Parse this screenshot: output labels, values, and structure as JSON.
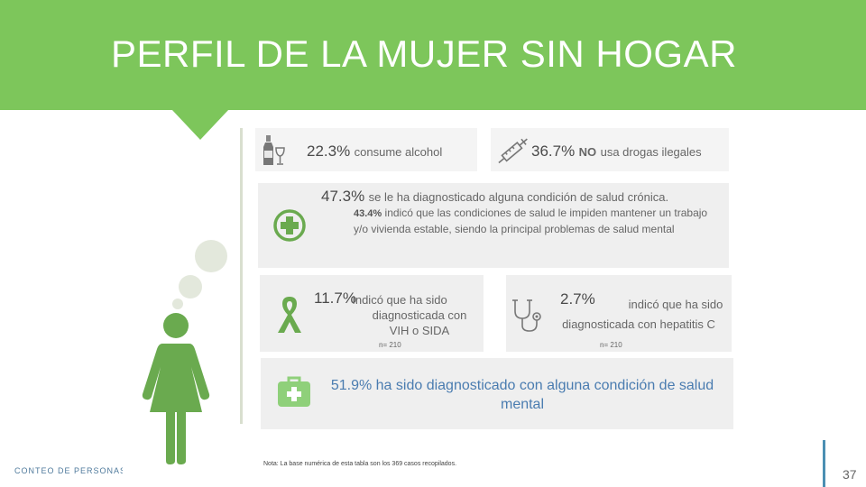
{
  "title": "PERFIL DE LA MUJER SIN HOGAR",
  "alcohol": {
    "pct": "22.3%",
    "text": "consume alcohol",
    "icon": "bottle-glass-icon"
  },
  "drugs": {
    "pct": "36.7%",
    "no": "NO",
    "text": "usa drogas ilegales",
    "icon": "syringe-icon"
  },
  "chronic": {
    "pct": "47.3%",
    "text": "se le ha diagnosticado alguna condición de salud crónica.",
    "sub_pct": "43.4%",
    "sub_text": "indicó que las condiciones de salud le impiden mantener un trabajo y/o vivienda estable, siendo la principal problemas de salud mental",
    "icon": "medical-cross-icon"
  },
  "hiv": {
    "pct": "11.7%",
    "text": "Indicó que ha sido diagnosticada con VIH o SIDA",
    "n": "n= 210",
    "icon": "awareness-ribbon-icon"
  },
  "hepatitis": {
    "pct": "2.7%",
    "text": "indicó que ha sido diagnosticada con hepatitis C",
    "n": "n= 210",
    "icon": "stethoscope-icon"
  },
  "mental": {
    "pct": "51.9%",
    "text": "ha sido diagnosticado con alguna condición de salud mental",
    "icon": "first-aid-kit-icon"
  },
  "note": "Nota: La base numérica de esta tabla son los 369 casos recopilados.",
  "footer": "CONTEO DE PERSONAS",
  "page_number": "37",
  "colors": {
    "header": "#7dc65b",
    "accent": "#6aaa4f",
    "card": "#efefef"
  }
}
